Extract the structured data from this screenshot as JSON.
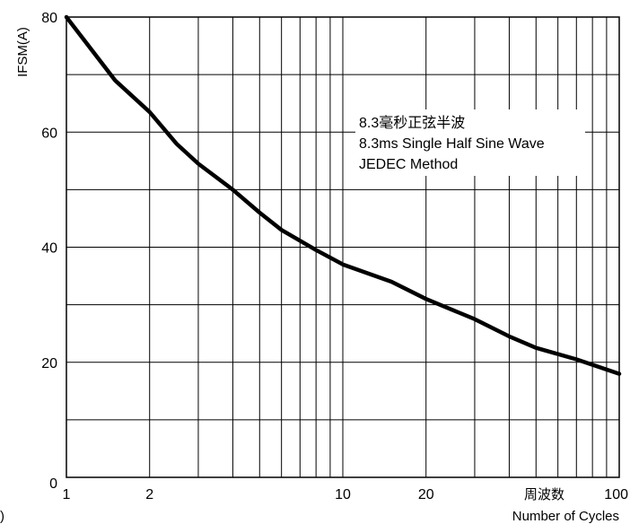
{
  "chart_data": {
    "type": "line",
    "ylabel": "IFSM(A)",
    "xlabel_cn": "周波数",
    "xlabel": "Number of Cycles",
    "x_scale": "log",
    "xlim": [
      1,
      100
    ],
    "ylim": [
      0,
      80
    ],
    "x_ticks": [
      {
        "v": 1,
        "label": "1"
      },
      {
        "v": 2,
        "label": "2"
      },
      {
        "v": 10,
        "label": "10"
      },
      {
        "v": 20,
        "label": "20"
      },
      {
        "v": 100,
        "label": "100"
      }
    ],
    "y_ticks": [
      {
        "v": 0,
        "label": "0"
      },
      {
        "v": 20,
        "label": "20"
      },
      {
        "v": 40,
        "label": "40"
      },
      {
        "v": 60,
        "label": "60"
      },
      {
        "v": 80,
        "label": "80"
      }
    ],
    "grid": true,
    "annotation": [
      "8.3毫秒正弦半波",
      "8.3ms Single Half Sine Wave",
      "JEDEC Method"
    ],
    "stray_label": ")",
    "series": [
      {
        "color": "#000000",
        "points": [
          [
            1,
            80
          ],
          [
            1.5,
            69
          ],
          [
            2,
            63.5
          ],
          [
            2.5,
            58
          ],
          [
            3,
            54.5
          ],
          [
            4,
            50
          ],
          [
            5,
            46
          ],
          [
            6,
            43
          ],
          [
            8,
            39.5
          ],
          [
            10,
            37
          ],
          [
            15,
            34
          ],
          [
            20,
            31
          ],
          [
            30,
            27.5
          ],
          [
            40,
            24.5
          ],
          [
            50,
            22.5
          ],
          [
            70,
            20.5
          ],
          [
            100,
            18
          ]
        ]
      }
    ]
  }
}
